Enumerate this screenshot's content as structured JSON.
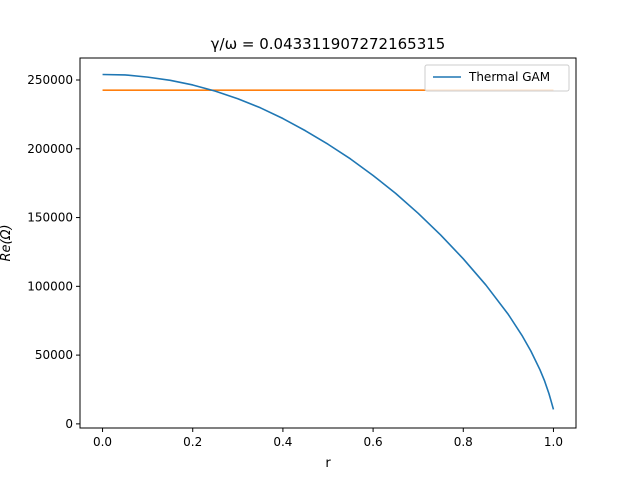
{
  "chart_data": {
    "type": "line",
    "title": "γ/ω = 0.043311907272165315",
    "xlabel": "r",
    "ylabel": "Re(Ω)",
    "xlim": [
      -0.05,
      1.05
    ],
    "ylim": [
      -3000,
      266000
    ],
    "x_ticks": [
      0.0,
      0.2,
      0.4,
      0.6,
      0.8,
      1.0
    ],
    "x_tick_labels": [
      "0.0",
      "0.2",
      "0.4",
      "0.6",
      "0.8",
      "1.0"
    ],
    "y_ticks": [
      0,
      50000,
      100000,
      150000,
      200000,
      250000
    ],
    "y_tick_labels": [
      "0",
      "50000",
      "100000",
      "150000",
      "200000",
      "250000"
    ],
    "grid": false,
    "legend_position": "top-right",
    "series": [
      {
        "name": "Thermal GAM",
        "color": "#1f77b4",
        "x": [
          0.0,
          0.05,
          0.1,
          0.15,
          0.2,
          0.25,
          0.3,
          0.35,
          0.4,
          0.45,
          0.5,
          0.55,
          0.6,
          0.65,
          0.7,
          0.75,
          0.8,
          0.85,
          0.9,
          0.93,
          0.95,
          0.97,
          0.98,
          0.99,
          0.995,
          1.0
        ],
        "y": [
          254000,
          253700,
          252100,
          249800,
          246400,
          241900,
          236400,
          229800,
          222000,
          213100,
          203300,
          192600,
          180600,
          167600,
          153100,
          137300,
          120000,
          101000,
          79500,
          64400,
          52900,
          39400,
          31500,
          22000,
          16300,
          10500
        ]
      },
      {
        "name": "",
        "color": "#ff7f0e",
        "x": [
          0.0,
          1.0
        ],
        "y": [
          242600,
          242600
        ]
      }
    ]
  }
}
